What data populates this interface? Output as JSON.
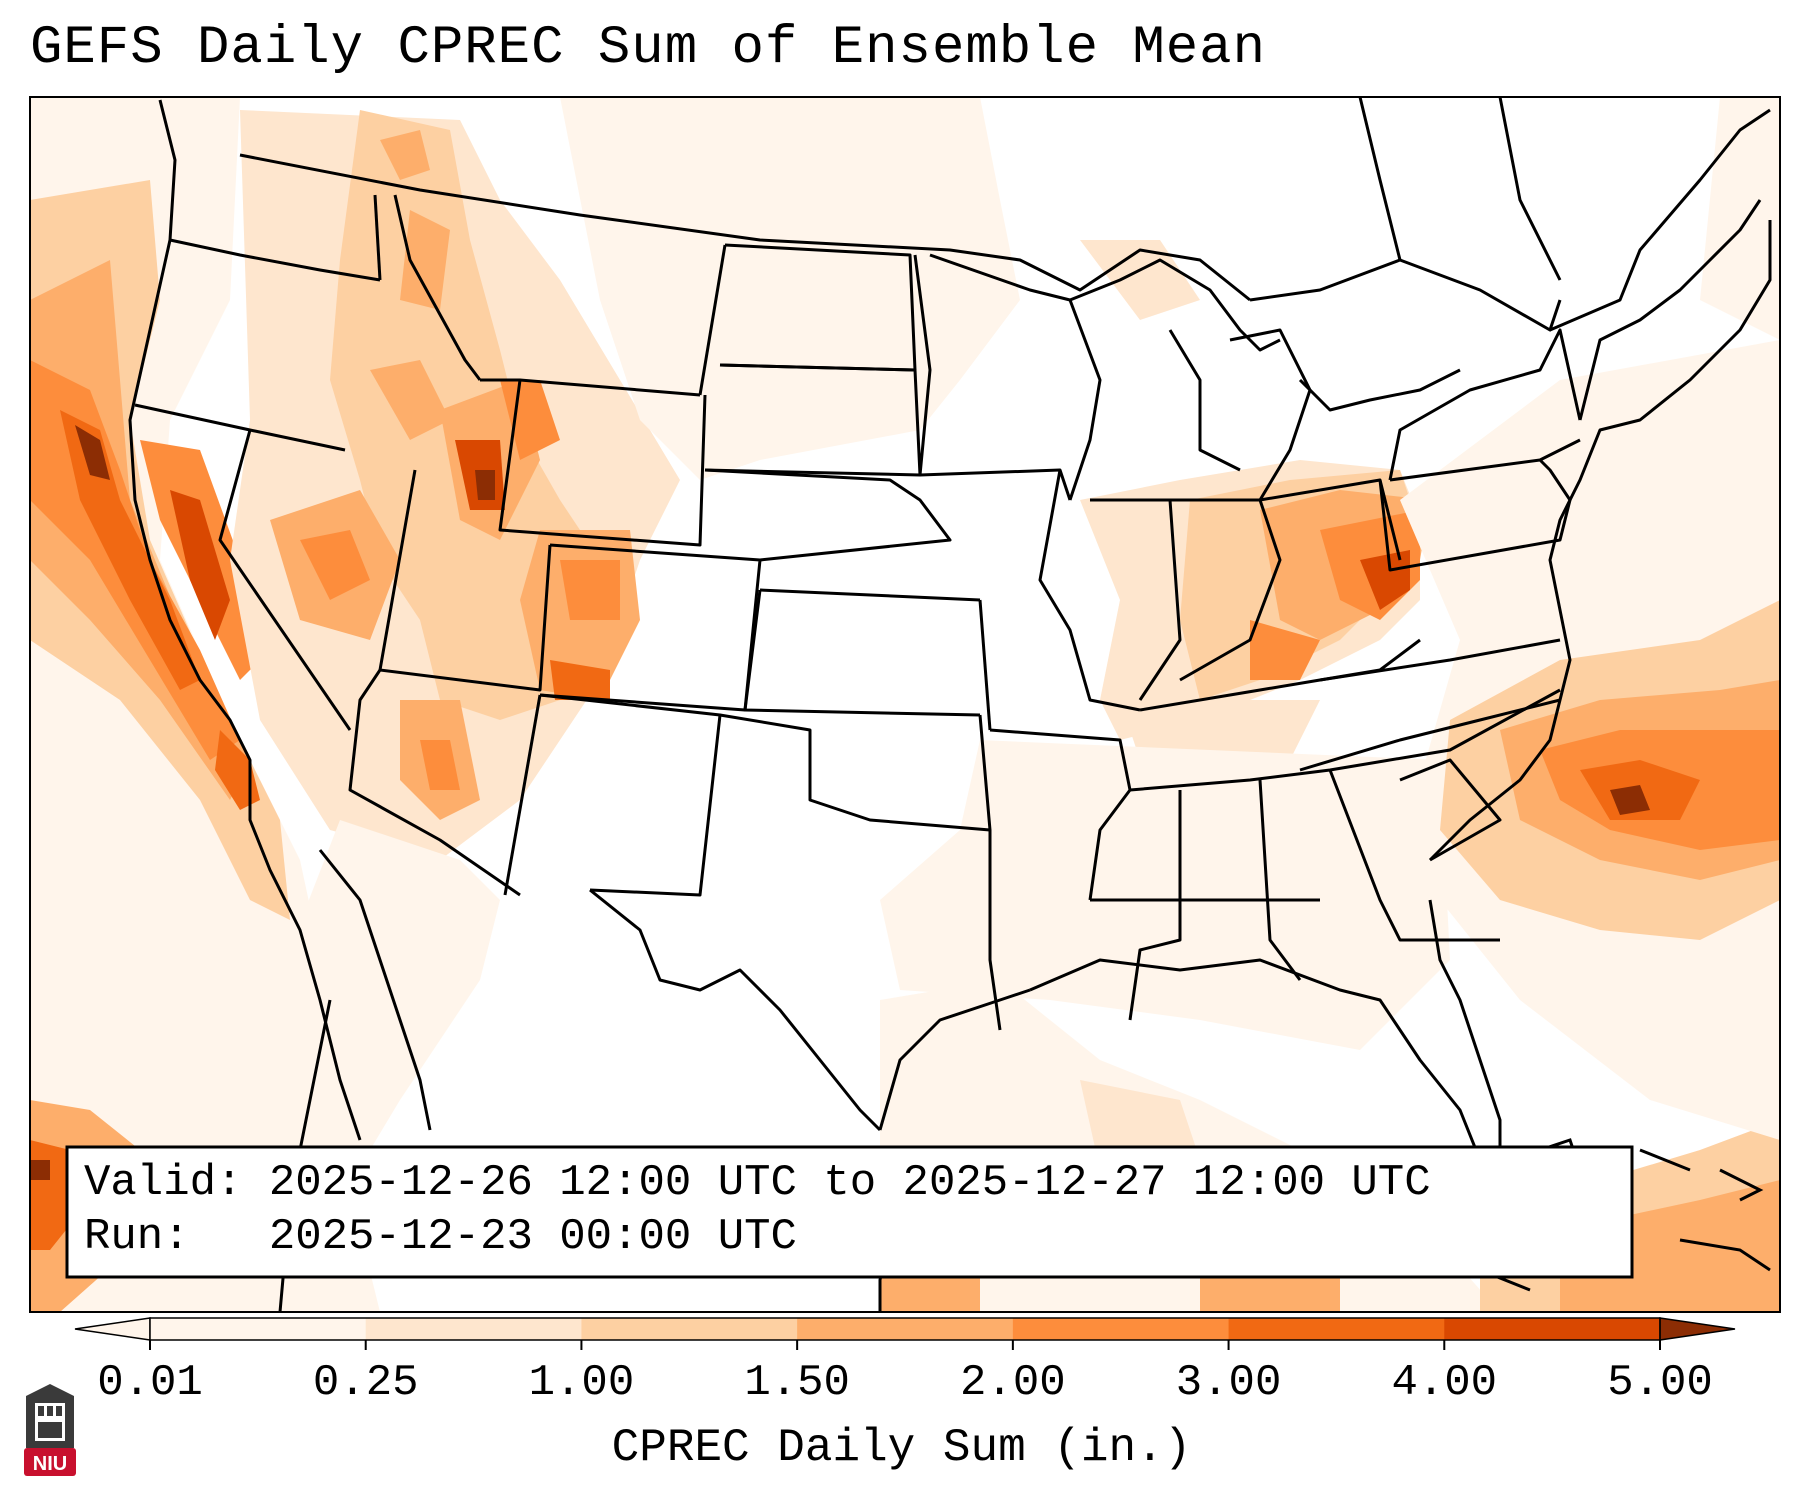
{
  "title": "GEFS Daily CPREC Sum of Ensemble Mean",
  "info_box": {
    "valid": "Valid: 2025-12-26 12:00 UTC to 2025-12-27 12:00 UTC",
    "run": "Run:   2025-12-23 00:00 UTC"
  },
  "colorbar": {
    "label": "CPREC Daily Sum (in.)",
    "ticks": [
      "0.01",
      "0.25",
      "1.00",
      "1.50",
      "2.00",
      "3.00",
      "4.00",
      "5.00"
    ],
    "colors": [
      "#fff5eb",
      "#fee6ce",
      "#fdd0a2",
      "#fdae6b",
      "#fd8d3c",
      "#f16913",
      "#d94801",
      "#8c2d04"
    ],
    "extend": "both"
  },
  "logo": {
    "text": "NIU",
    "color": "#c8102e"
  },
  "colors": {
    "frame": "#000000",
    "light": "#fff5eb",
    "pale": "#fee6ce",
    "tan": "#fdd0a2",
    "orange": "#fdae6b",
    "strong": "#fd8d3c",
    "deep": "#f16913",
    "darker": "#d94801",
    "darkest": "#8c2d04"
  }
}
